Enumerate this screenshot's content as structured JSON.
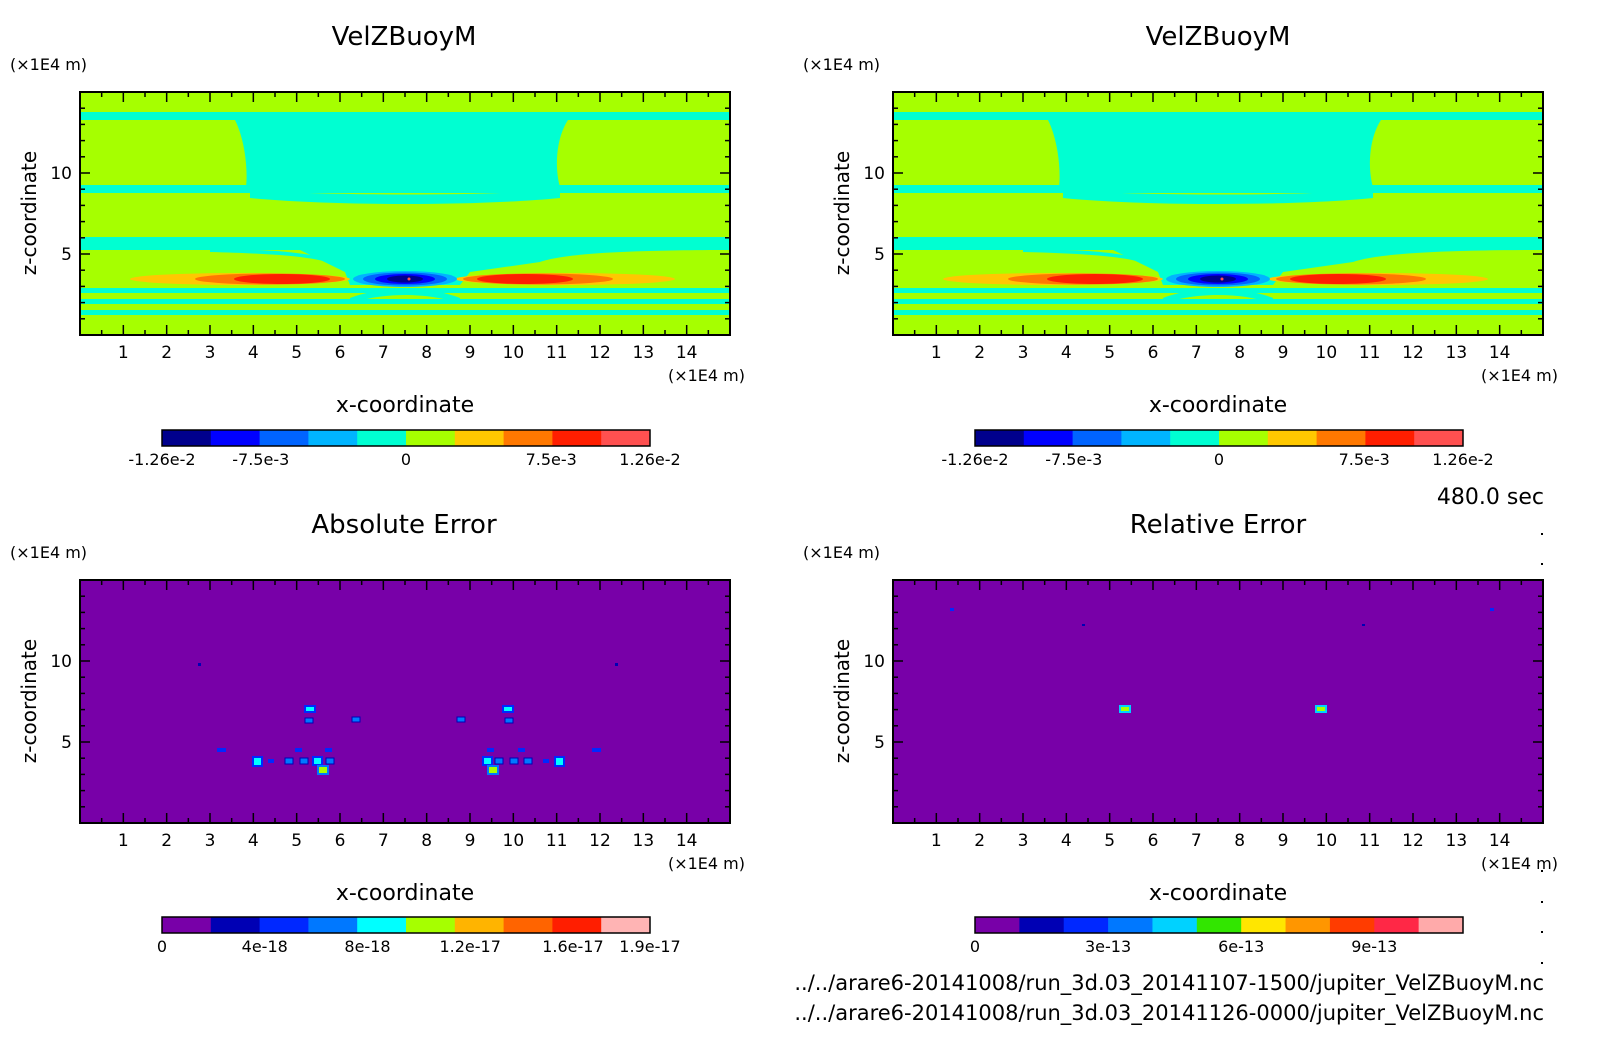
{
  "time_label": "480.0 sec",
  "files": [
    "../../arare6-20141008/run_3d.03_20141107-1500/jupiter_VelZBuoyM.nc",
    "../../arare6-20141008/run_3d.03_20141126-0000/jupiter_VelZBuoyM.nc"
  ],
  "chart_data": [
    {
      "type": "heatmap",
      "title": "VelZBuoyM",
      "xlabel": "x-coordinate",
      "ylabel": "z-coordinate",
      "x_unit": "(×1E4 m)",
      "y_unit": "(×1E4 m)",
      "xlim": [
        0,
        15
      ],
      "ylim": [
        0,
        15
      ],
      "x_ticks": [
        "1",
        "2",
        "3",
        "4",
        "5",
        "6",
        "7",
        "8",
        "9",
        "10",
        "11",
        "12",
        "13",
        "14"
      ],
      "y_ticks": [
        "5",
        "10"
      ],
      "colorbar": {
        "colors": [
          "#00008c",
          "#0000ff",
          "#0064ff",
          "#00b4ff",
          "#00ffd2",
          "#a6ff00",
          "#ffc800",
          "#ff7800",
          "#ff1e00",
          "#ff5050"
        ],
        "tick_labels": [
          "-1.26e-2",
          "-7.5e-3",
          "0",
          "7.5e-3",
          "1.26e-2"
        ],
        "tick_values": [
          -0.0126,
          -0.0075,
          0,
          0.0075,
          0.0126
        ],
        "range": [
          -0.0126,
          0.0126
        ]
      },
      "field": "velocity"
    },
    {
      "type": "heatmap",
      "title": "VelZBuoyM",
      "xlabel": "x-coordinate",
      "ylabel": "z-coordinate",
      "x_unit": "(×1E4 m)",
      "y_unit": "(×1E4 m)",
      "xlim": [
        0,
        15
      ],
      "ylim": [
        0,
        15
      ],
      "x_ticks": [
        "1",
        "2",
        "3",
        "4",
        "5",
        "6",
        "7",
        "8",
        "9",
        "10",
        "11",
        "12",
        "13",
        "14"
      ],
      "y_ticks": [
        "5",
        "10"
      ],
      "colorbar": {
        "colors": [
          "#00008c",
          "#0000ff",
          "#0064ff",
          "#00b4ff",
          "#00ffd2",
          "#a6ff00",
          "#ffc800",
          "#ff7800",
          "#ff1e00",
          "#ff5050"
        ],
        "tick_labels": [
          "-1.26e-2",
          "-7.5e-3",
          "0",
          "7.5e-3",
          "1.26e-2"
        ],
        "tick_values": [
          -0.0126,
          -0.0075,
          0,
          0.0075,
          0.0126
        ],
        "range": [
          -0.0126,
          0.0126
        ]
      },
      "field": "velocity"
    },
    {
      "type": "heatmap",
      "title": "Absolute Error",
      "xlabel": "x-coordinate",
      "ylabel": "z-coordinate",
      "x_unit": "(×1E4 m)",
      "y_unit": "(×1E4 m)",
      "xlim": [
        0,
        15
      ],
      "ylim": [
        0,
        15
      ],
      "x_ticks": [
        "1",
        "2",
        "3",
        "4",
        "5",
        "6",
        "7",
        "8",
        "9",
        "10",
        "11",
        "12",
        "13",
        "14"
      ],
      "y_ticks": [
        "5",
        "10"
      ],
      "colorbar": {
        "colors": [
          "#7800a8",
          "#0000b4",
          "#0028ff",
          "#0078ff",
          "#00ffff",
          "#a6ff00",
          "#ffb400",
          "#ff6400",
          "#ff1e00",
          "#ffb4b4"
        ],
        "tick_labels": [
          "0",
          "4e-18",
          "8e-18",
          "1.2e-17",
          "1.6e-17",
          "1.9e-17"
        ],
        "tick_values": [
          0,
          4e-18,
          8e-18,
          1.2e-17,
          1.6e-17,
          1.9e-17
        ],
        "range": [
          0,
          1.9e-17
        ]
      },
      "background_value": 0,
      "field": "abs_error"
    },
    {
      "type": "heatmap",
      "title": "Relative Error",
      "xlabel": "x-coordinate",
      "ylabel": "z-coordinate",
      "x_unit": "(×1E4 m)",
      "y_unit": "(×1E4 m)",
      "xlim": [
        0,
        15
      ],
      "ylim": [
        0,
        15
      ],
      "x_ticks": [
        "1",
        "2",
        "3",
        "4",
        "5",
        "6",
        "7",
        "8",
        "9",
        "10",
        "11",
        "12",
        "13",
        "14"
      ],
      "y_ticks": [
        "5",
        "10"
      ],
      "colorbar": {
        "colors": [
          "#7800a8",
          "#0000b4",
          "#0028ff",
          "#0078ff",
          "#00d2ff",
          "#32e600",
          "#ffe600",
          "#ff9600",
          "#ff3c00",
          "#ff2846",
          "#ffaaaa"
        ],
        "tick_labels": [
          "0",
          "3e-13",
          "6e-13",
          "9e-13"
        ],
        "tick_values": [
          0,
          3e-13,
          6e-13,
          9e-13
        ],
        "range": [
          0,
          1.1e-12
        ]
      },
      "background_value": 0,
      "field": "rel_error"
    }
  ]
}
